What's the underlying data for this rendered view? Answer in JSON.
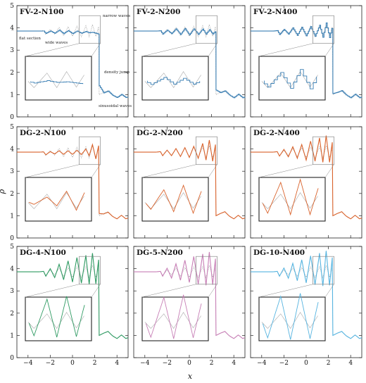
{
  "chart_data": {
    "type": "line",
    "title": "",
    "xlabel": "x",
    "ylabel": "ρ",
    "xlim": [
      -5,
      5
    ],
    "ylim": [
      0,
      5
    ],
    "x_ticks": [
      -4,
      -2,
      0,
      2,
      4
    ],
    "y_ticks": [
      0,
      1,
      2,
      3,
      4,
      5
    ],
    "grid": false,
    "reference": {
      "name": "",
      "color": "#999999",
      "style": "dotted",
      "points": [
        [
          -5.0,
          3.857
        ],
        [
          -4.0,
          3.857
        ],
        [
          -3.0,
          3.857
        ],
        [
          -2.6,
          3.88
        ],
        [
          -2.4,
          3.7
        ],
        [
          -2.0,
          3.93
        ],
        [
          -1.6,
          3.72
        ],
        [
          -1.2,
          4.02
        ],
        [
          -0.8,
          3.65
        ],
        [
          -0.4,
          4.05
        ],
        [
          0.0,
          3.62
        ],
        [
          0.4,
          4.08
        ],
        [
          0.8,
          3.6
        ],
        [
          1.2,
          4.1
        ],
        [
          1.5,
          3.6
        ],
        [
          1.8,
          4.15
        ],
        [
          2.1,
          3.62
        ],
        [
          2.35,
          4.05
        ],
        [
          2.4,
          1.0
        ],
        [
          2.8,
          1.1
        ],
        [
          3.2,
          1.18
        ],
        [
          3.6,
          0.98
        ],
        [
          4.0,
          0.86
        ],
        [
          4.4,
          1.02
        ],
        [
          4.8,
          0.86
        ],
        [
          5.0,
          0.9
        ]
      ]
    },
    "panels": [
      {
        "id": "FV-2-N100",
        "label": "FV-2-N100",
        "color": "#3a7fb4",
        "style": "steps",
        "annotations": [
          "flat section",
          "wide waves",
          "narrow waves",
          "density jump",
          "sinusoidal waves"
        ],
        "x": [
          -5.0,
          -4.0,
          -3.0,
          -2.6,
          -2.4,
          -2.0,
          -1.6,
          -1.2,
          -0.8,
          -0.4,
          0.0,
          0.4,
          0.8,
          1.2,
          1.5,
          1.8,
          2.1,
          2.35,
          2.4,
          2.8,
          3.2,
          3.6,
          4.0,
          4.4,
          4.8,
          5.0
        ],
        "y": [
          3.857,
          3.857,
          3.857,
          3.86,
          3.75,
          3.86,
          3.76,
          3.9,
          3.74,
          3.88,
          3.74,
          3.86,
          3.76,
          3.84,
          3.78,
          3.8,
          3.76,
          3.72,
          1.4,
          1.08,
          1.16,
          0.97,
          0.87,
          1.01,
          0.87,
          0.9
        ]
      },
      {
        "id": "FV-2-N200",
        "label": "FV-2-N200",
        "color": "#3a7fb4",
        "style": "steps",
        "x": [
          -5.0,
          -4.0,
          -3.0,
          -2.6,
          -2.4,
          -2.0,
          -1.6,
          -1.2,
          -0.8,
          -0.4,
          0.0,
          0.4,
          0.8,
          1.2,
          1.5,
          1.8,
          2.1,
          2.35,
          2.4,
          2.8,
          3.2,
          3.6,
          4.0,
          4.4,
          4.8,
          5.0
        ],
        "y": [
          3.857,
          3.857,
          3.857,
          3.87,
          3.72,
          3.9,
          3.74,
          3.96,
          3.7,
          3.97,
          3.69,
          3.96,
          3.71,
          3.95,
          3.72,
          3.92,
          3.72,
          3.85,
          1.2,
          1.09,
          1.17,
          0.98,
          0.86,
          1.02,
          0.86,
          0.9
        ]
      },
      {
        "id": "FV-2-N400",
        "label": "FV-2-N400",
        "color": "#3a7fb4",
        "style": "steps",
        "x": [
          -5.0,
          -4.0,
          -3.0,
          -2.6,
          -2.4,
          -2.0,
          -1.6,
          -1.2,
          -0.8,
          -0.4,
          0.0,
          0.4,
          0.8,
          1.2,
          1.5,
          1.8,
          2.1,
          2.35,
          2.4,
          2.8,
          3.2,
          3.6,
          4.0,
          4.4,
          4.8,
          5.0
        ],
        "y": [
          3.857,
          3.857,
          3.857,
          3.88,
          3.7,
          3.93,
          3.72,
          4.0,
          3.66,
          4.03,
          3.64,
          4.06,
          3.62,
          4.12,
          3.58,
          4.22,
          3.56,
          4.08,
          1.05,
          1.1,
          1.18,
          0.98,
          0.86,
          1.02,
          0.86,
          0.9
        ]
      },
      {
        "id": "DG-2-N100",
        "label": "DG-2-N100",
        "color": "#d9622b",
        "style": "line",
        "x": [
          -5.0,
          -4.0,
          -3.0,
          -2.6,
          -2.4,
          -2.0,
          -1.6,
          -1.2,
          -0.8,
          -0.4,
          0.0,
          0.4,
          0.8,
          1.2,
          1.5,
          1.8,
          2.1,
          2.35,
          2.4,
          2.8,
          3.2,
          3.6,
          4.0,
          4.4,
          4.8,
          5.0
        ],
        "y": [
          3.857,
          3.857,
          3.857,
          3.87,
          3.74,
          3.88,
          3.78,
          3.92,
          3.76,
          3.92,
          3.76,
          3.94,
          3.75,
          4.0,
          3.7,
          4.2,
          3.55,
          4.15,
          1.1,
          1.08,
          1.16,
          0.97,
          0.86,
          1.02,
          0.86,
          0.9
        ]
      },
      {
        "id": "DG-2-N200",
        "label": "DG-2-N200",
        "color": "#d9622b",
        "style": "line",
        "x": [
          -5.0,
          -4.0,
          -3.0,
          -2.6,
          -2.4,
          -2.0,
          -1.6,
          -1.2,
          -0.8,
          -0.4,
          0.0,
          0.4,
          0.8,
          1.2,
          1.5,
          1.8,
          2.1,
          2.35,
          2.4,
          2.8,
          3.2,
          3.6,
          4.0,
          4.4,
          4.8,
          5.0
        ],
        "y": [
          3.857,
          3.857,
          3.857,
          3.88,
          3.7,
          3.95,
          3.7,
          4.02,
          3.66,
          4.06,
          3.62,
          4.12,
          3.58,
          4.25,
          3.5,
          4.4,
          3.45,
          4.2,
          1.0,
          1.1,
          1.18,
          0.98,
          0.86,
          1.02,
          0.86,
          0.9
        ]
      },
      {
        "id": "DG-2-N400",
        "label": "DG-2-N400",
        "color": "#d9622b",
        "style": "line",
        "x": [
          -5.0,
          -4.0,
          -3.0,
          -2.6,
          -2.4,
          -2.0,
          -1.6,
          -1.2,
          -0.8,
          -0.4,
          0.0,
          0.4,
          0.8,
          1.2,
          1.5,
          1.8,
          2.1,
          2.35,
          2.4,
          2.8,
          3.2,
          3.6,
          4.0,
          4.4,
          4.8,
          5.0
        ],
        "y": [
          3.857,
          3.857,
          3.857,
          3.88,
          3.68,
          3.98,
          3.65,
          4.1,
          3.58,
          4.2,
          3.5,
          4.35,
          3.45,
          4.5,
          3.4,
          4.6,
          3.4,
          4.3,
          1.0,
          1.1,
          1.18,
          0.98,
          0.86,
          1.02,
          0.86,
          0.9
        ]
      },
      {
        "id": "DG-4-N100",
        "label": "DG-4-N100",
        "color": "#2e9a62",
        "style": "line",
        "x": [
          -5.0,
          -4.0,
          -3.0,
          -2.6,
          -2.4,
          -2.0,
          -1.6,
          -1.2,
          -0.8,
          -0.4,
          0.0,
          0.4,
          0.8,
          1.2,
          1.5,
          1.8,
          2.1,
          2.35,
          2.4,
          2.8,
          3.2,
          3.6,
          4.0,
          4.4,
          4.8,
          5.0
        ],
        "y": [
          3.857,
          3.857,
          3.857,
          3.88,
          3.66,
          4.0,
          3.6,
          4.2,
          3.5,
          4.35,
          3.4,
          4.5,
          3.35,
          4.6,
          3.3,
          4.7,
          3.32,
          4.4,
          1.0,
          1.1,
          1.18,
          0.98,
          0.86,
          1.02,
          0.86,
          0.9
        ]
      },
      {
        "id": "DG-5-N200",
        "label": "DG-5-N200",
        "color": "#c77fb6",
        "style": "line",
        "x": [
          -5.0,
          -4.0,
          -3.0,
          -2.6,
          -2.4,
          -2.0,
          -1.6,
          -1.2,
          -0.8,
          -0.4,
          0.0,
          0.4,
          0.8,
          1.2,
          1.5,
          1.8,
          2.1,
          2.35,
          2.4,
          2.8,
          3.2,
          3.6,
          4.0,
          4.4,
          4.8,
          5.0
        ],
        "y": [
          3.857,
          3.857,
          3.857,
          3.88,
          3.66,
          4.02,
          3.58,
          4.22,
          3.48,
          4.38,
          3.38,
          4.55,
          3.3,
          4.66,
          3.25,
          4.75,
          3.28,
          4.45,
          1.0,
          1.1,
          1.18,
          0.98,
          0.86,
          1.02,
          0.86,
          0.9
        ]
      },
      {
        "id": "DG-10-N400",
        "label": "DG-10-N400",
        "color": "#56b4e0",
        "style": "line",
        "x": [
          -5.0,
          -4.0,
          -3.0,
          -2.6,
          -2.4,
          -2.0,
          -1.6,
          -1.2,
          -0.8,
          -0.4,
          0.0,
          0.4,
          0.8,
          1.2,
          1.5,
          1.8,
          2.1,
          2.35,
          2.4,
          2.8,
          3.2,
          3.6,
          4.0,
          4.4,
          4.8,
          5.0
        ],
        "y": [
          3.857,
          3.857,
          3.857,
          3.88,
          3.66,
          4.03,
          3.57,
          4.24,
          3.46,
          4.4,
          3.36,
          4.58,
          3.28,
          4.7,
          3.22,
          4.8,
          3.25,
          4.5,
          1.0,
          1.1,
          1.18,
          0.98,
          0.86,
          1.02,
          0.86,
          0.9
        ]
      }
    ]
  }
}
